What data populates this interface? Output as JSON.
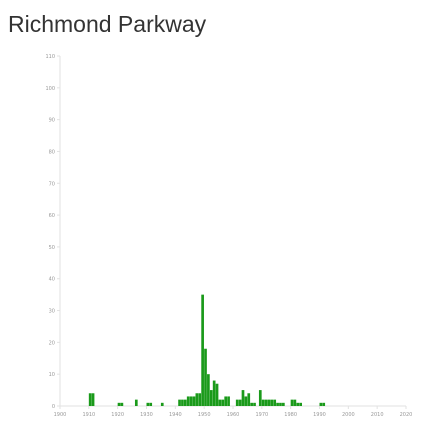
{
  "title": "Richmond Parkway",
  "colors": {
    "bar": "#1a9a1a",
    "axis": "#e2e2e2",
    "tick_text": "#999999",
    "title": "#333333"
  },
  "chart_data": {
    "type": "bar",
    "title": "Richmond Parkway",
    "xlabel": "",
    "ylabel": "",
    "xlim": [
      1900,
      2020
    ],
    "ylim": [
      0,
      110
    ],
    "grid": false,
    "x_ticks": [
      "1900",
      "1910",
      "1920",
      "1930",
      "1940",
      "1950",
      "1960",
      "1970",
      "1980",
      "1990",
      "2000",
      "2010",
      "2020"
    ],
    "y_ticks": [
      "0",
      "10",
      "20",
      "30",
      "40",
      "50",
      "60",
      "70",
      "80",
      "90",
      "100",
      "110"
    ],
    "x": [
      1910,
      1911,
      1920,
      1921,
      1926,
      1930,
      1931,
      1935,
      1941,
      1942,
      1943,
      1944,
      1945,
      1946,
      1947,
      1948,
      1949,
      1950,
      1951,
      1952,
      1953,
      1954,
      1955,
      1956,
      1957,
      1958,
      1961,
      1962,
      1963,
      1964,
      1965,
      1966,
      1967,
      1969,
      1970,
      1971,
      1972,
      1973,
      1974,
      1975,
      1976,
      1977,
      1980,
      1981,
      1982,
      1983,
      1990,
      1991
    ],
    "values": [
      4,
      4,
      1,
      1,
      2,
      1,
      1,
      1,
      2,
      2,
      2,
      3,
      3,
      3,
      4,
      4,
      35,
      18,
      10,
      5,
      8,
      7,
      2,
      2,
      3,
      3,
      2,
      2,
      5,
      3,
      4,
      1,
      1,
      5,
      2,
      2,
      2,
      2,
      2,
      1,
      1,
      1,
      2,
      2,
      1,
      1,
      1,
      1
    ]
  }
}
